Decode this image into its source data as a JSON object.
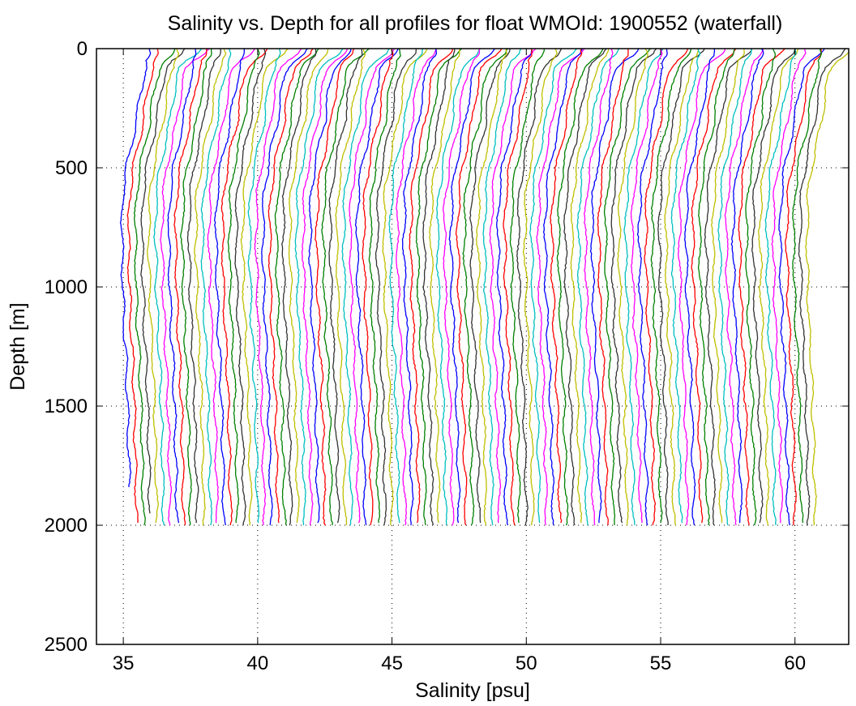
{
  "chart_data": {
    "type": "line",
    "title": "Salinity vs. Depth for all profiles for float WMOId: 1900552 (waterfall)",
    "xlabel": "Salinity [psu]",
    "ylabel": "Depth [m]",
    "xlim": [
      34,
      62
    ],
    "ylim": [
      0,
      2500
    ],
    "y_reversed": true,
    "grid": true,
    "grid_style": "dotted",
    "x_ticks": [
      35,
      40,
      45,
      50,
      55,
      60
    ],
    "y_ticks": [
      0,
      500,
      1000,
      1500,
      2000,
      2500
    ],
    "x_tick_labels": [
      "35",
      "40",
      "45",
      "50",
      "55",
      "60"
    ],
    "y_tick_labels": [
      "0",
      "500",
      "1000",
      "1500",
      "2000",
      "2500"
    ],
    "waterfall_offset_psu": 0.25,
    "series_color_cycle": [
      "#0000ff",
      "#ff0000",
      "#008000",
      "#333333",
      "#bfbf00",
      "#00bfbf",
      "#ff00ff"
    ],
    "profile_count": 103,
    "profile_max_depths": [
      1840,
      1990,
      2000,
      1950,
      1990,
      2000,
      2000,
      1990,
      2000,
      2000,
      1990,
      2000,
      2000,
      1990,
      2000,
      2000,
      1990,
      2000,
      2000,
      1990,
      2000,
      2000,
      1990,
      2000,
      2000,
      1990,
      2000,
      2000,
      1990,
      2000,
      2000,
      1990,
      2000,
      2000,
      1990,
      2000,
      2000,
      1990,
      2000,
      2000,
      1990,
      2000,
      2000,
      1990,
      2000,
      2000,
      1990,
      2000,
      2000,
      1990,
      2000,
      2000,
      1990,
      2000,
      2000,
      1990,
      2000,
      2000,
      1990,
      2000,
      2000,
      1990,
      2000,
      2000,
      1990,
      2000,
      2000,
      1990,
      2000,
      2000,
      1990,
      2000,
      2000,
      1990,
      2000,
      2000,
      1990,
      2000,
      2000,
      1990,
      2000,
      2000,
      1990,
      2000,
      2000,
      1990,
      2000,
      2000,
      1990,
      2000,
      2000,
      1990,
      2000,
      2000,
      1990,
      2000,
      2000,
      1990,
      2000,
      2000,
      1990,
      2000,
      2000
    ],
    "mean_profile": {
      "depth": [
        0,
        25,
        50,
        75,
        100,
        150,
        200,
        250,
        300,
        400,
        500,
        600,
        700,
        800,
        1000,
        1200,
        1300,
        1400,
        1500,
        1600,
        1700,
        1800,
        2000
      ],
      "salinity": [
        36.3,
        36.25,
        36.0,
        35.88,
        35.8,
        35.7,
        35.62,
        35.55,
        35.5,
        35.3,
        35.12,
        35.0,
        34.96,
        34.95,
        34.98,
        35.04,
        35.1,
        35.13,
        35.16,
        35.18,
        35.2,
        35.22,
        35.25
      ]
    },
    "surface_features": {
      "depth": [
        0,
        20,
        40,
        60,
        80
      ],
      "first_profile_salinity": [
        36.25,
        36.0,
        35.9,
        35.85,
        35.8
      ],
      "last_profile_salinity": [
        61.2,
        61.7,
        61.9,
        61.5,
        61.2
      ]
    }
  }
}
